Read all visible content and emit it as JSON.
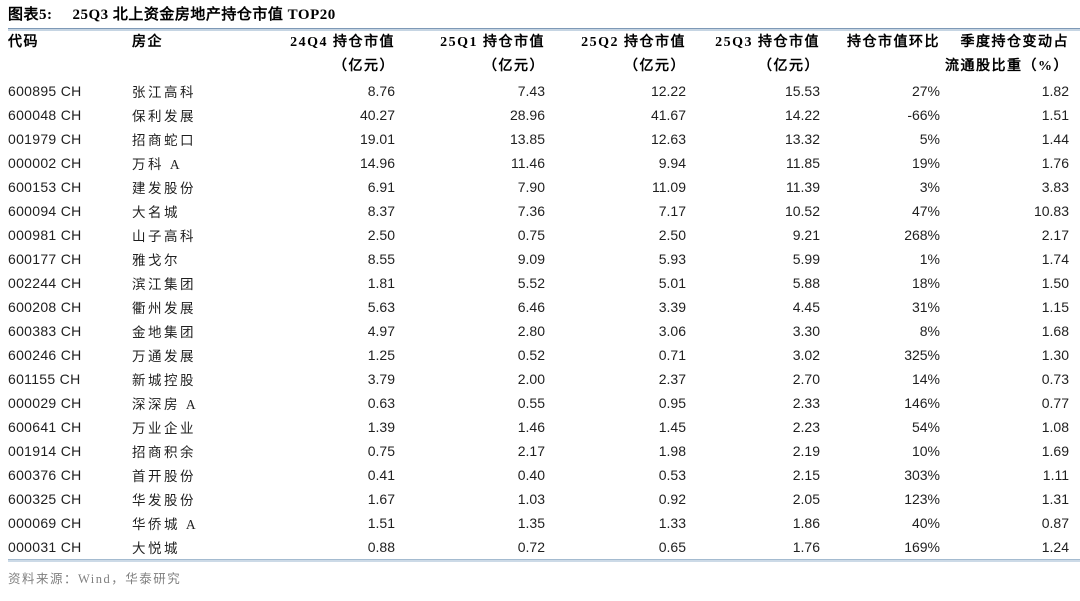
{
  "figure": {
    "label": "图表5:",
    "title": "25Q3 北上资金房地产持仓市值 TOP20"
  },
  "table": {
    "columns": [
      {
        "key": "code",
        "align": "left",
        "line1": "代码",
        "line2": ""
      },
      {
        "key": "name",
        "align": "left",
        "line1": "房企",
        "line2": ""
      },
      {
        "key": "q4_24",
        "align": "right",
        "line1": "24Q4 持仓市值",
        "line2": "（亿元）"
      },
      {
        "key": "q1_25",
        "align": "right",
        "line1": "25Q1 持仓市值",
        "line2": "（亿元）"
      },
      {
        "key": "q2_25",
        "align": "right",
        "line1": "25Q2 持仓市值",
        "line2": "（亿元）"
      },
      {
        "key": "q3_25",
        "align": "right",
        "line1": "25Q3 持仓市值",
        "line2": "（亿元）"
      },
      {
        "key": "qoq",
        "align": "right",
        "line1": "持仓市值环比",
        "line2": ""
      },
      {
        "key": "chg",
        "align": "right",
        "line1": "季度持仓变动占",
        "line2": "流通股比重（%）"
      }
    ],
    "rows": [
      {
        "code": "600895 CH",
        "name": "张江高科",
        "q4_24": "8.76",
        "q1_25": "7.43",
        "q2_25": "12.22",
        "q3_25": "15.53",
        "qoq": "27%",
        "chg": "1.82"
      },
      {
        "code": "600048 CH",
        "name": "保利发展",
        "q4_24": "40.27",
        "q1_25": "28.96",
        "q2_25": "41.67",
        "q3_25": "14.22",
        "qoq": "-66%",
        "chg": "1.51"
      },
      {
        "code": "001979 CH",
        "name": "招商蛇口",
        "q4_24": "19.01",
        "q1_25": "13.85",
        "q2_25": "12.63",
        "q3_25": "13.32",
        "qoq": "5%",
        "chg": "1.44"
      },
      {
        "code": "000002 CH",
        "name": "万科 A",
        "q4_24": "14.96",
        "q1_25": "11.46",
        "q2_25": "9.94",
        "q3_25": "11.85",
        "qoq": "19%",
        "chg": "1.76"
      },
      {
        "code": "600153 CH",
        "name": "建发股份",
        "q4_24": "6.91",
        "q1_25": "7.90",
        "q2_25": "11.09",
        "q3_25": "11.39",
        "qoq": "3%",
        "chg": "3.83"
      },
      {
        "code": "600094 CH",
        "name": "大名城",
        "q4_24": "8.37",
        "q1_25": "7.36",
        "q2_25": "7.17",
        "q3_25": "10.52",
        "qoq": "47%",
        "chg": "10.83"
      },
      {
        "code": "000981 CH",
        "name": "山子高科",
        "q4_24": "2.50",
        "q1_25": "0.75",
        "q2_25": "2.50",
        "q3_25": "9.21",
        "qoq": "268%",
        "chg": "2.17"
      },
      {
        "code": "600177 CH",
        "name": "雅戈尔",
        "q4_24": "8.55",
        "q1_25": "9.09",
        "q2_25": "5.93",
        "q3_25": "5.99",
        "qoq": "1%",
        "chg": "1.74"
      },
      {
        "code": "002244 CH",
        "name": "滨江集团",
        "q4_24": "1.81",
        "q1_25": "5.52",
        "q2_25": "5.01",
        "q3_25": "5.88",
        "qoq": "18%",
        "chg": "1.50"
      },
      {
        "code": "600208 CH",
        "name": "衢州发展",
        "q4_24": "5.63",
        "q1_25": "6.46",
        "q2_25": "3.39",
        "q3_25": "4.45",
        "qoq": "31%",
        "chg": "1.15"
      },
      {
        "code": "600383 CH",
        "name": "金地集团",
        "q4_24": "4.97",
        "q1_25": "2.80",
        "q2_25": "3.06",
        "q3_25": "3.30",
        "qoq": "8%",
        "chg": "1.68"
      },
      {
        "code": "600246 CH",
        "name": "万通发展",
        "q4_24": "1.25",
        "q1_25": "0.52",
        "q2_25": "0.71",
        "q3_25": "3.02",
        "qoq": "325%",
        "chg": "1.30"
      },
      {
        "code": "601155 CH",
        "name": "新城控股",
        "q4_24": "3.79",
        "q1_25": "2.00",
        "q2_25": "2.37",
        "q3_25": "2.70",
        "qoq": "14%",
        "chg": "0.73"
      },
      {
        "code": "000029 CH",
        "name": "深深房 A",
        "q4_24": "0.63",
        "q1_25": "0.55",
        "q2_25": "0.95",
        "q3_25": "2.33",
        "qoq": "146%",
        "chg": "0.77"
      },
      {
        "code": "600641 CH",
        "name": "万业企业",
        "q4_24": "1.39",
        "q1_25": "1.46",
        "q2_25": "1.45",
        "q3_25": "2.23",
        "qoq": "54%",
        "chg": "1.08"
      },
      {
        "code": "001914 CH",
        "name": "招商积余",
        "q4_24": "0.75",
        "q1_25": "2.17",
        "q2_25": "1.98",
        "q3_25": "2.19",
        "qoq": "10%",
        "chg": "1.69"
      },
      {
        "code": "600376 CH",
        "name": "首开股份",
        "q4_24": "0.41",
        "q1_25": "0.40",
        "q2_25": "0.53",
        "q3_25": "2.15",
        "qoq": "303%",
        "chg": "1.11"
      },
      {
        "code": "600325 CH",
        "name": "华发股份",
        "q4_24": "1.67",
        "q1_25": "1.03",
        "q2_25": "0.92",
        "q3_25": "2.05",
        "qoq": "123%",
        "chg": "1.31"
      },
      {
        "code": "000069 CH",
        "name": "华侨城 A",
        "q4_24": "1.51",
        "q1_25": "1.35",
        "q2_25": "1.33",
        "q3_25": "1.86",
        "qoq": "40%",
        "chg": "0.87"
      },
      {
        "code": "000031 CH",
        "name": "大悦城",
        "q4_24": "0.88",
        "q1_25": "0.72",
        "q2_25": "0.65",
        "q3_25": "1.76",
        "qoq": "169%",
        "chg": "1.24"
      }
    ]
  },
  "footer": {
    "source": "资料来源：Wind，华泰研究"
  },
  "colors": {
    "rule_top_dark": "#7e99b6",
    "rule_top_light": "#c6d5e3",
    "rule_bottom": "#a4bbd0",
    "footer_text": "#7f7f7f",
    "text": "#1f1f1f"
  }
}
